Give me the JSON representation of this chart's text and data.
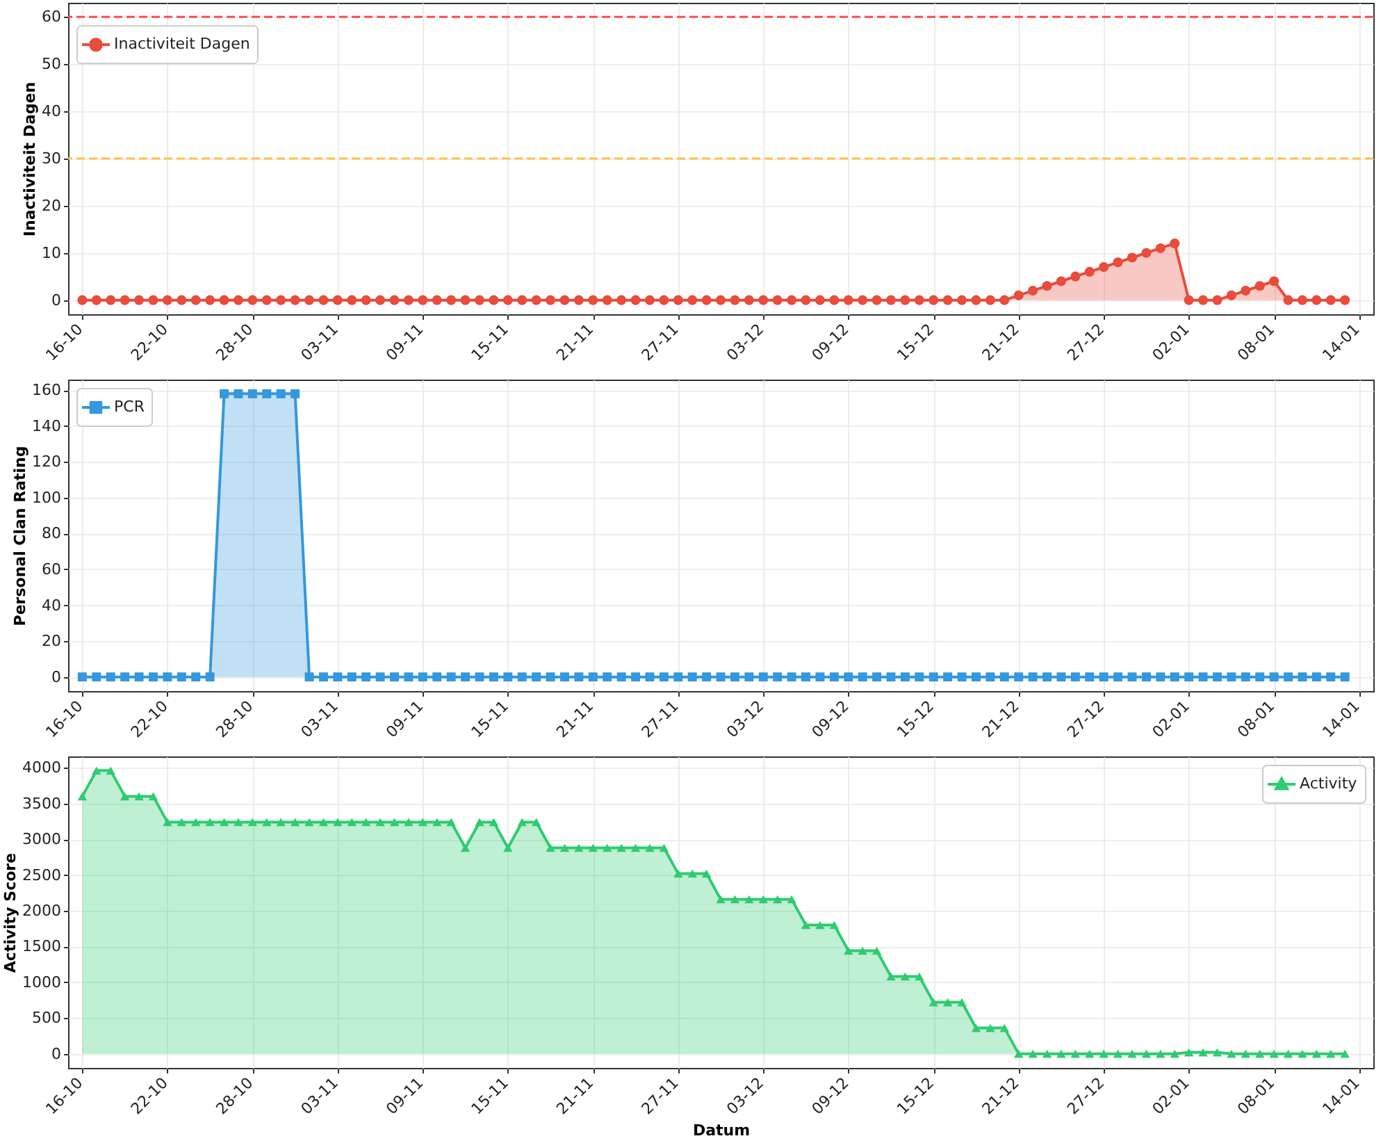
{
  "chart_data": [
    {
      "type": "area",
      "ylabel": "Inactiviteit Dagen",
      "categories": [
        "16-10",
        null,
        null,
        null,
        null,
        null,
        "22-10",
        null,
        null,
        null,
        null,
        null,
        "28-10",
        null,
        null,
        null,
        null,
        null,
        "03-11",
        null,
        null,
        null,
        null,
        null,
        "09-11",
        null,
        null,
        null,
        null,
        null,
        "15-11",
        null,
        null,
        null,
        null,
        null,
        "21-11",
        null,
        null,
        null,
        null,
        null,
        "27-11",
        null,
        null,
        null,
        null,
        null,
        "03-12",
        null,
        null,
        null,
        null,
        null,
        "09-12",
        null,
        null,
        null,
        null,
        null,
        "15-12",
        null,
        null,
        null,
        null,
        null,
        "21-12",
        null,
        null,
        null,
        null,
        null,
        "27-12",
        null,
        null,
        null,
        null,
        null,
        "02-01",
        null,
        null,
        null,
        null,
        null,
        "08-01",
        null,
        null,
        null,
        null,
        null,
        "14-01"
      ],
      "series": [
        {
          "name": "Inactiviteit Dagen",
          "color": "#e74c3c",
          "values": [
            0,
            0,
            0,
            0,
            0,
            0,
            0,
            0,
            0,
            0,
            0,
            0,
            0,
            0,
            0,
            0,
            0,
            0,
            0,
            0,
            0,
            0,
            0,
            0,
            0,
            0,
            0,
            0,
            0,
            0,
            0,
            0,
            0,
            0,
            0,
            0,
            0,
            0,
            0,
            0,
            0,
            0,
            0,
            0,
            0,
            0,
            0,
            0,
            0,
            0,
            0,
            0,
            0,
            0,
            0,
            0,
            0,
            0,
            0,
            0,
            0,
            0,
            0,
            0,
            0,
            0,
            1,
            2,
            3,
            4,
            5,
            6,
            7,
            8,
            9,
            10,
            11,
            12,
            0,
            0,
            0,
            1,
            2,
            3,
            4,
            0,
            0,
            0,
            0,
            0,
            null
          ]
        }
      ],
      "ylim": [
        -3,
        63
      ],
      "yticks": [
        0,
        10,
        20,
        30,
        40,
        50,
        60
      ],
      "ref_lines": [
        {
          "axis": "y",
          "value": 60,
          "color": "#ff4d4d",
          "line_style": "dashed"
        },
        {
          "axis": "y",
          "value": 30,
          "color": "#ffc04d",
          "line_style": "dashed"
        }
      ],
      "grid": true,
      "legend": "top left",
      "marker": "circle",
      "line_style": "solid"
    },
    {
      "type": "area",
      "ylabel": "Personal Clan Rating",
      "categories": [
        "16-10",
        null,
        null,
        null,
        null,
        null,
        "22-10",
        null,
        null,
        null,
        null,
        null,
        "28-10",
        null,
        null,
        null,
        null,
        null,
        "03-11",
        null,
        null,
        null,
        null,
        null,
        "09-11",
        null,
        null,
        null,
        null,
        null,
        "15-11",
        null,
        null,
        null,
        null,
        null,
        "21-11",
        null,
        null,
        null,
        null,
        null,
        "27-11",
        null,
        null,
        null,
        null,
        null,
        "03-12",
        null,
        null,
        null,
        null,
        null,
        "09-12",
        null,
        null,
        null,
        null,
        null,
        "15-12",
        null,
        null,
        null,
        null,
        null,
        "21-12",
        null,
        null,
        null,
        null,
        null,
        "27-12",
        null,
        null,
        null,
        null,
        null,
        "02-01",
        null,
        null,
        null,
        null,
        null,
        "08-01",
        null,
        null,
        null,
        null,
        null,
        "14-01"
      ],
      "series": [
        {
          "name": "PCR",
          "color": "#3498db",
          "values": [
            0,
            0,
            0,
            0,
            0,
            0,
            0,
            0,
            0,
            0,
            158,
            158,
            158,
            158,
            158,
            158,
            0,
            0,
            0,
            0,
            0,
            0,
            0,
            0,
            0,
            0,
            0,
            0,
            0,
            0,
            0,
            0,
            0,
            0,
            0,
            0,
            0,
            0,
            0,
            0,
            0,
            0,
            0,
            0,
            0,
            0,
            0,
            0,
            0,
            0,
            0,
            0,
            0,
            0,
            0,
            0,
            0,
            0,
            0,
            0,
            0,
            0,
            0,
            0,
            0,
            0,
            0,
            0,
            0,
            0,
            0,
            0,
            0,
            0,
            0,
            0,
            0,
            0,
            0,
            0,
            0,
            0,
            0,
            0,
            0,
            0,
            0,
            0,
            0,
            0,
            null
          ]
        }
      ],
      "ylim": [
        -7.9,
        165.9
      ],
      "yticks": [
        0,
        20,
        40,
        60,
        80,
        100,
        120,
        140,
        160
      ],
      "grid": true,
      "legend": "top left",
      "marker": "square",
      "line_style": "solid"
    },
    {
      "type": "area",
      "xlabel": "Datum",
      "ylabel": "Activity Score",
      "categories": [
        "16-10",
        null,
        null,
        null,
        null,
        null,
        "22-10",
        null,
        null,
        null,
        null,
        null,
        "28-10",
        null,
        null,
        null,
        null,
        null,
        "03-11",
        null,
        null,
        null,
        null,
        null,
        "09-11",
        null,
        null,
        null,
        null,
        null,
        "15-11",
        null,
        null,
        null,
        null,
        null,
        "21-11",
        null,
        null,
        null,
        null,
        null,
        "27-11",
        null,
        null,
        null,
        null,
        null,
        "03-12",
        null,
        null,
        null,
        null,
        null,
        "09-12",
        null,
        null,
        null,
        null,
        null,
        "15-12",
        null,
        null,
        null,
        null,
        null,
        "21-12",
        null,
        null,
        null,
        null,
        null,
        "27-12",
        null,
        null,
        null,
        null,
        null,
        "02-01",
        null,
        null,
        null,
        null,
        null,
        "08-01",
        null,
        null,
        null,
        null,
        null,
        "14-01"
      ],
      "series": [
        {
          "name": "Activity",
          "color": "#2ecc71",
          "values": [
            3600,
            3960,
            3960,
            3600,
            3600,
            3600,
            3240,
            3240,
            3240,
            3240,
            3240,
            3240,
            3240,
            3240,
            3240,
            3240,
            3240,
            3240,
            3240,
            3240,
            3240,
            3240,
            3240,
            3240,
            3240,
            3240,
            3240,
            2880,
            3240,
            3240,
            2880,
            3240,
            3240,
            2880,
            2880,
            2880,
            2880,
            2880,
            2880,
            2880,
            2880,
            2880,
            2520,
            2520,
            2520,
            2160,
            2160,
            2160,
            2160,
            2160,
            2160,
            1800,
            1800,
            1800,
            1440,
            1440,
            1440,
            1080,
            1080,
            1080,
            720,
            720,
            720,
            360,
            360,
            360,
            0,
            0,
            0,
            0,
            0,
            0,
            0,
            0,
            0,
            0,
            0,
            0,
            20,
            20,
            20,
            0,
            0,
            0,
            0,
            0,
            0,
            0,
            0,
            0,
            null
          ]
        }
      ],
      "ylim": [
        -198,
        4158
      ],
      "yticks": [
        0,
        500,
        1000,
        1500,
        2000,
        2500,
        3000,
        3500,
        4000
      ],
      "grid": true,
      "legend": "top right",
      "marker": "triangle",
      "line_style": "solid"
    }
  ]
}
